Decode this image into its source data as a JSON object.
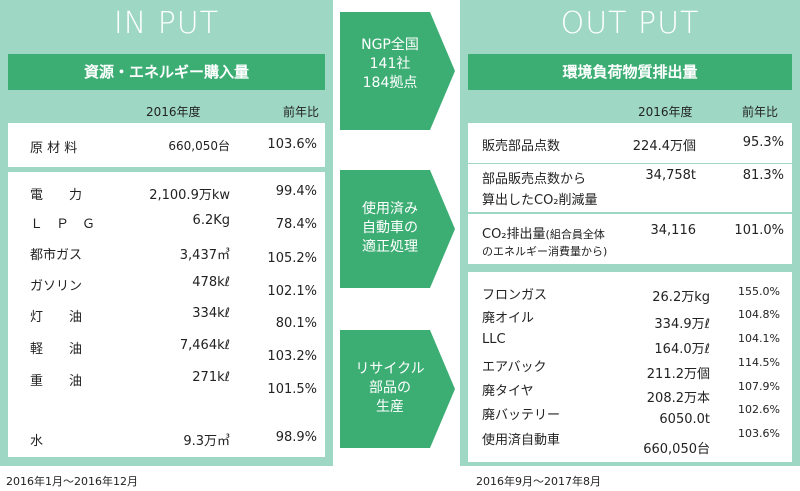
{
  "input": {
    "title": "IN PUT",
    "banner": "資源・エネルギー購入量",
    "col_year": "2016年度",
    "col_ratio": "前年比",
    "raw_material": {
      "label": "原 材 料",
      "value": "660,050台",
      "ratio": "103.6%"
    },
    "energy": [
      {
        "label": "電　　力",
        "value": "2,100.9万kw",
        "ratio": "99.4%"
      },
      {
        "label": "Ｌ　Ｐ　Ｇ",
        "value": "6.2Kg",
        "ratio": "78.4%"
      },
      {
        "label": "都市ガス",
        "value": "3,437㎥",
        "ratio": "105.2%"
      },
      {
        "label": "ガソリン",
        "value": "478kℓ",
        "ratio": "102.1%"
      },
      {
        "label": "灯　　油",
        "value": "334kℓ",
        "ratio": "80.1%"
      },
      {
        "label": "軽　　油",
        "value": "7,464kℓ",
        "ratio": "103.2%"
      },
      {
        "label": "重　　油",
        "value": "271kℓ",
        "ratio": "101.5%"
      },
      {
        "label": "水",
        "value": "9.3万㎥",
        "ratio": "98.9%"
      }
    ],
    "period": "2016年1月～2016年12月"
  },
  "center": {
    "arrow1": [
      "NGP全国",
      "141社",
      "184拠点"
    ],
    "arrow2": [
      "使用済み",
      "自動車の",
      "適正処理"
    ],
    "arrow3": [
      "リサイクル",
      "部品の",
      "生産"
    ],
    "color": "#3cae74"
  },
  "output": {
    "title": "OUT PUT",
    "banner": "環境負荷物質排出量",
    "col_year": "2016年度",
    "col_ratio": "前年比",
    "sales": [
      {
        "label": "販売部品点数",
        "value": "224.4万個",
        "ratio": "95.3%"
      },
      {
        "label_line1": "部品販売点数から",
        "label_line2": "算出したCO₂削減量",
        "value": "34,758t",
        "ratio": "81.3%"
      },
      {
        "label_line1": "CO₂排出量",
        "label_note": "(組合員全体",
        "label_line2": "のエネルギー消費量から)",
        "value": "34,116",
        "ratio": "101.0%"
      }
    ],
    "recycling": [
      {
        "label": "フロンガス",
        "value": "26.2万kg",
        "ratio": "155.0%"
      },
      {
        "label": "廃オイル",
        "value": "334.9万ℓ",
        "ratio": "104.8%"
      },
      {
        "label": "LLC",
        "value": "164.0万ℓ",
        "ratio": "104.1%"
      },
      {
        "label": "エアバック",
        "value": "211.2万個",
        "ratio": "114.5%"
      },
      {
        "label": "廃タイヤ",
        "value": "208.2万本",
        "ratio": "107.9%"
      },
      {
        "label": "廃バッテリー",
        "value": "6050.0t",
        "ratio": "102.6%"
      },
      {
        "label": "使用済自動車",
        "value": "660,050台",
        "ratio": "103.6%"
      }
    ],
    "period": "2016年9月～2017年8月"
  },
  "colors": {
    "panel": "#9ed8c4",
    "banner": "#3cae74"
  }
}
